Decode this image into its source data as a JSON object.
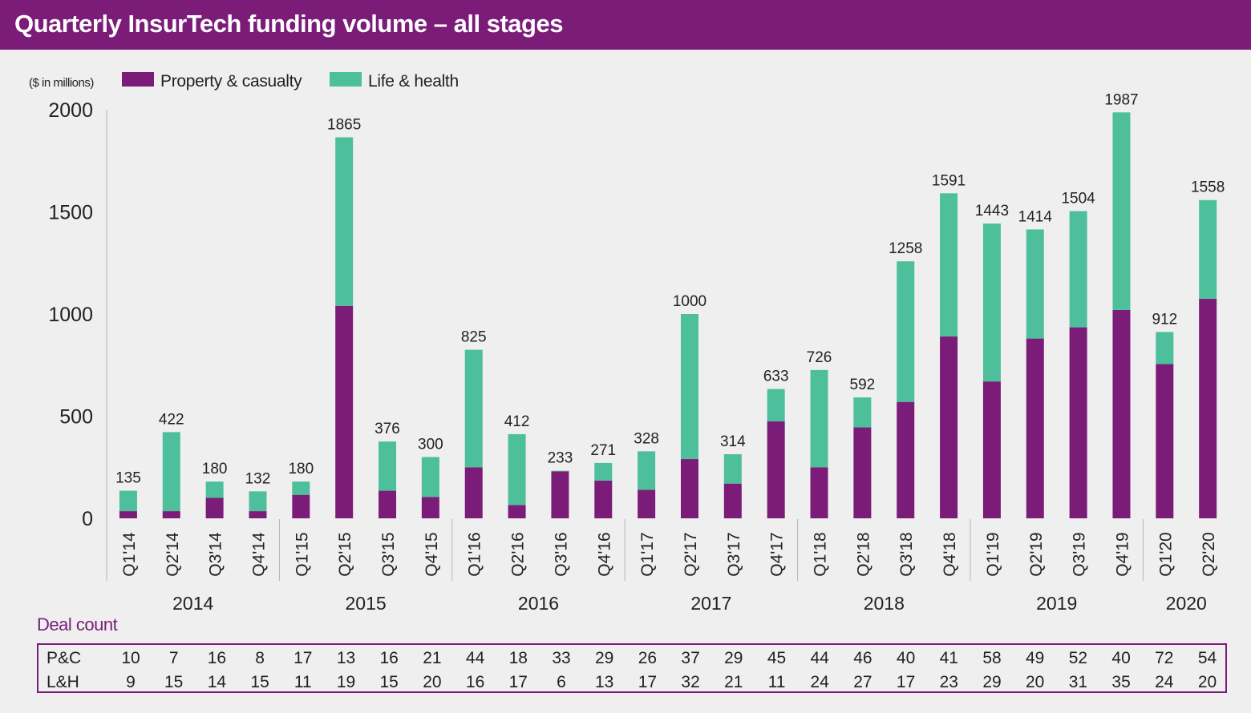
{
  "title": "Quarterly InsurTech funding volume – all stages",
  "colors": {
    "title_bg": "#7b1c78",
    "pc": "#7b1c78",
    "lh": "#4dbf9b",
    "axis": "#b5b5b5",
    "text": "#222222"
  },
  "chart_data": {
    "type": "bar",
    "stacked": true,
    "unit_note": "($ in millions)",
    "legend_position": "top-left",
    "ylim": [
      0,
      2000
    ],
    "yticks": [
      0,
      500,
      1000,
      1500,
      2000
    ],
    "categories": [
      "Q1'14",
      "Q2'14",
      "Q3'14",
      "Q4'14",
      "Q1'15",
      "Q2'15",
      "Q3'15",
      "Q4'15",
      "Q1'16",
      "Q2'16",
      "Q3'16",
      "Q4'16",
      "Q1'17",
      "Q2'17",
      "Q3'17",
      "Q4'17",
      "Q1'18",
      "Q2'18",
      "Q3'18",
      "Q4'18",
      "Q1'19",
      "Q2'19",
      "Q3'19",
      "Q4'19",
      "Q1'20",
      "Q2'20"
    ],
    "years": [
      "2014",
      "2015",
      "2016",
      "2017",
      "2018",
      "2019",
      "2020"
    ],
    "series": [
      {
        "name": "Property & casualty",
        "values": [
          35,
          35,
          100,
          35,
          115,
          1040,
          135,
          105,
          250,
          65,
          230,
          185,
          140,
          290,
          170,
          475,
          250,
          445,
          570,
          890,
          670,
          880,
          935,
          1020,
          755,
          1075
        ]
      },
      {
        "name": "Life & health",
        "values": [
          100,
          387,
          80,
          97,
          65,
          825,
          241,
          195,
          575,
          347,
          3,
          86,
          188,
          710,
          144,
          158,
          476,
          147,
          688,
          701,
          773,
          534,
          569,
          967,
          157,
          483
        ]
      }
    ],
    "totals": [
      135,
      422,
      180,
      132,
      180,
      1865,
      376,
      300,
      825,
      412,
      233,
      271,
      328,
      1000,
      314,
      633,
      726,
      592,
      1258,
      1591,
      1443,
      1414,
      1504,
      1987,
      912,
      1558
    ]
  },
  "deal_count": {
    "label": "Deal count",
    "rows": [
      {
        "label": "P&C",
        "values": [
          10,
          7,
          16,
          8,
          17,
          13,
          16,
          21,
          44,
          18,
          33,
          29,
          26,
          37,
          29,
          45,
          44,
          46,
          40,
          41,
          58,
          49,
          52,
          40,
          72,
          54
        ]
      },
      {
        "label": "L&H",
        "values": [
          9,
          15,
          14,
          15,
          11,
          19,
          15,
          20,
          16,
          17,
          6,
          13,
          17,
          32,
          21,
          11,
          24,
          27,
          17,
          23,
          29,
          20,
          31,
          35,
          24,
          20
        ]
      }
    ]
  }
}
